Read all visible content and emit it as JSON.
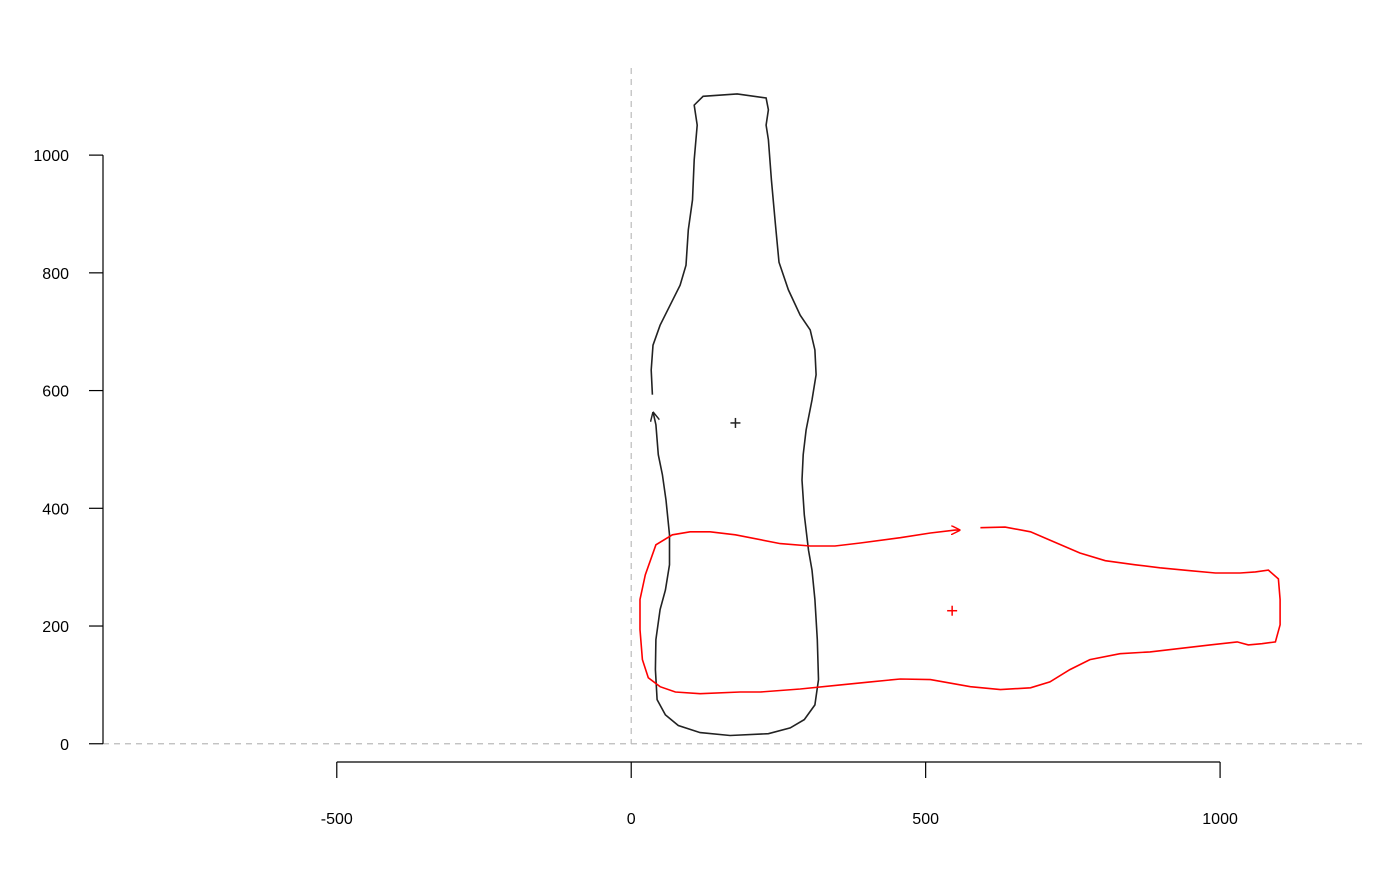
{
  "chart_data": {
    "type": "path",
    "xlim": [
      -897,
      1241
    ],
    "ylim": [
      -31,
      1148
    ],
    "xticks": [
      -500,
      0,
      500,
      1000
    ],
    "yticks": [
      0,
      200,
      400,
      600,
      800,
      1000
    ],
    "hlines": [
      0
    ],
    "vlines": [
      0
    ],
    "series": [
      {
        "color": "#222222",
        "x": [
          36,
          34,
          37,
          49,
          66,
          83,
          93,
          97,
          104,
          107,
          112,
          107,
          122,
          180,
          229,
          233,
          229,
          233,
          238,
          245,
          251,
          267,
          287,
          304,
          312,
          314,
          307,
          297,
          292,
          290,
          294,
          301,
          307,
          312,
          316,
          318,
          312,
          294,
          270,
          233,
          168,
          117,
          80,
          58,
          44,
          41,
          42,
          49,
          58,
          65,
          65,
          59,
          53,
          46,
          42,
          37
        ],
        "y": [
          593,
          635,
          677,
          711,
          745,
          779,
          813,
          873,
          924,
          992,
          1051,
          1085,
          1100,
          1104,
          1097,
          1077,
          1051,
          1026,
          958,
          881,
          818,
          771,
          728,
          703,
          669,
          627,
          584,
          533,
          491,
          448,
          389,
          329,
          295,
          245,
          177,
          109,
          66,
          41,
          27,
          17,
          14,
          19,
          31,
          49,
          75,
          126,
          177,
          228,
          261,
          304,
          355,
          414,
          457,
          491,
          542,
          564
        ],
        "centroid": [
          177,
          545
        ]
      },
      {
        "color": "#ff0000",
        "x": [
          593,
          635,
          678,
          711,
          762,
          805,
          856,
          898,
          949,
          992,
          1034,
          1060,
          1082,
          1099,
          1102,
          1102,
          1094,
          1071,
          1048,
          1029,
          983,
          881,
          830,
          779,
          745,
          711,
          678,
          627,
          576,
          508,
          457,
          406,
          355,
          287,
          219,
          185,
          117,
          75,
          49,
          29,
          19,
          15,
          15,
          24,
          42,
          70,
          100,
          134,
          177,
          253,
          304,
          346,
          389,
          457,
          508,
          550,
          559
        ],
        "y": [
          367,
          368,
          360,
          346,
          324,
          311,
          304,
          299,
          294,
          290,
          290,
          292,
          295,
          280,
          245,
          202,
          173,
          170,
          168,
          173,
          168,
          156,
          153,
          143,
          126,
          105,
          95,
          92,
          97,
          109,
          110,
          105,
          100,
          93,
          88,
          88,
          85,
          88,
          97,
          112,
          143,
          194,
          245,
          287,
          338,
          355,
          360,
          360,
          355,
          340,
          336,
          336,
          341,
          350,
          358,
          363,
          363
        ],
        "centroid": [
          545,
          226
        ]
      }
    ]
  }
}
